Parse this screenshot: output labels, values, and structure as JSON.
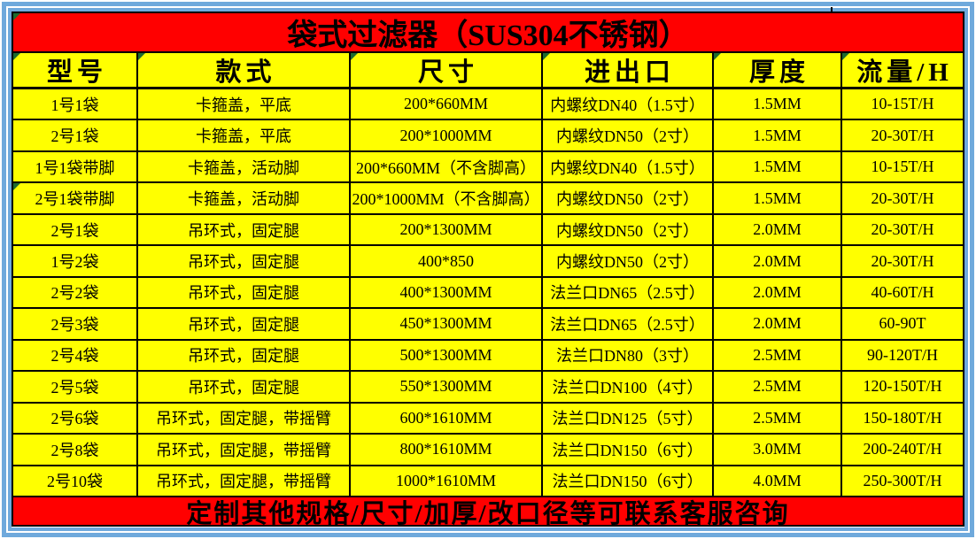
{
  "title": "袋式过滤器（SUS304不锈钢）",
  "footer": "定制其他规格/尺寸/加厚/改口径等可联系客服咨询",
  "table": {
    "columns": [
      "型号",
      "款式",
      "尺寸",
      "进出口",
      "厚度",
      "流量/H"
    ],
    "rows": [
      [
        "1号1袋",
        "卡箍盖，平底",
        "200*660MM",
        "内螺纹DN40（1.5寸）",
        "1.5MM",
        "10-15T/H"
      ],
      [
        "2号1袋",
        "卡箍盖，平底",
        "200*1000MM",
        "内螺纹DN50（2寸）",
        "1.5MM",
        "20-30T/H"
      ],
      [
        "1号1袋带脚",
        "卡箍盖，活动脚",
        "200*660MM（不含脚高）",
        "内螺纹DN40（1.5寸）",
        "1.5MM",
        "10-15T/H"
      ],
      [
        "2号1袋带脚",
        "卡箍盖，活动脚",
        "200*1000MM（不含脚高）",
        "内螺纹DN50（2寸）",
        "1.5MM",
        "20-30T/H"
      ],
      [
        "2号1袋",
        "吊环式，固定腿",
        "200*1300MM",
        "内螺纹DN50（2寸）",
        "2.0MM",
        "20-30T/H"
      ],
      [
        "1号2袋",
        "吊环式，固定腿",
        "400*850",
        "内螺纹DN50（2寸）",
        "2.0MM",
        "20-30T/H"
      ],
      [
        "2号2袋",
        "吊环式，固定腿",
        "400*1300MM",
        "法兰口DN65（2.5寸）",
        "2.0MM",
        "40-60T/H"
      ],
      [
        "2号3袋",
        "吊环式，固定腿",
        "450*1300MM",
        "法兰口DN65（2.5寸）",
        "2.0MM",
        "60-90T"
      ],
      [
        "2号4袋",
        "吊环式，固定腿",
        "500*1300MM",
        "法兰口DN80（3寸）",
        "2.5MM",
        "90-120T/H"
      ],
      [
        "2号5袋",
        "吊环式，固定腿",
        "550*1300MM",
        "法兰口DN100（4寸）",
        "2.5MM",
        "120-150T/H"
      ],
      [
        "2号6袋",
        "吊环式，固定腿，带摇臂",
        "600*1610MM",
        "法兰口DN125（5寸）",
        "2.5MM",
        "150-180T/H"
      ],
      [
        "2号8袋",
        "吊环式，固定腿，带摇臂",
        "800*1610MM",
        "法兰口DN150（6寸）",
        "3.0MM",
        "200-240T/H"
      ],
      [
        "2号10袋",
        "吊环式，固定腿，带摇臂",
        "1000*1610MM",
        "法兰口DN150（6寸）",
        "4.0MM",
        "250-300T/H"
      ]
    ]
  },
  "marker_cell": {
    "row": 3,
    "col": 0
  },
  "colors": {
    "frame_blue": "#6FA9DC",
    "band_red": "#FF0000",
    "cell_yellow": "#FFFF00",
    "grid_black": "#000000",
    "marker_green": "#1E6B2E",
    "text": "#000000"
  }
}
